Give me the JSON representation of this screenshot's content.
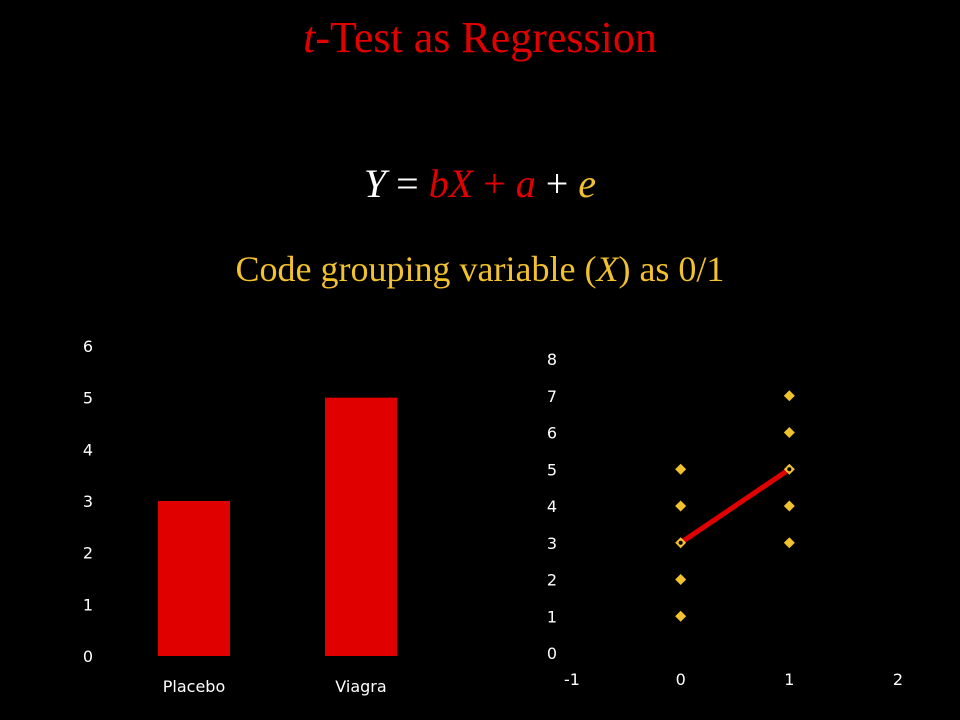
{
  "title": {
    "italic_part": "t",
    "rest": "-Test as Regression"
  },
  "equation": {
    "Y": "Y",
    "eq": " = ",
    "bX": "bX",
    "plus1": " + ",
    "a": "a",
    "plus2": " + ",
    "e": "e",
    "colors": {
      "Y": "#ffffff",
      "eq": "#ffffff",
      "bX": "#e00000",
      "plus1": "#e00000",
      "a": "#e00000",
      "plus2": "#ffffff",
      "e": "#f2c12e"
    }
  },
  "subtitle": {
    "before": "Code grouping variable (",
    "var": "X",
    "after": ") as 0/1",
    "color": "#f2c12e"
  },
  "chart_data": [
    {
      "type": "bar",
      "categories": [
        "Placebo",
        "Viagra"
      ],
      "values": [
        3,
        5
      ],
      "ylim": [
        0,
        6
      ],
      "yticks": [
        "0",
        "1",
        "2",
        "3",
        "4",
        "5",
        "6"
      ],
      "grid": false,
      "color": "#e00000"
    },
    {
      "type": "scatter",
      "xlim": [
        -1,
        2
      ],
      "ylim": [
        0,
        8
      ],
      "xticks": [
        "-1",
        "0",
        "1",
        "2"
      ],
      "yticks": [
        "0",
        "1",
        "2",
        "3",
        "4",
        "5",
        "6",
        "7",
        "8"
      ],
      "grid": false,
      "points": [
        {
          "x": 0,
          "y": 1
        },
        {
          "x": 0,
          "y": 2
        },
        {
          "x": 0,
          "y": 3
        },
        {
          "x": 0,
          "y": 4
        },
        {
          "x": 0,
          "y": 5
        },
        {
          "x": 1,
          "y": 3
        },
        {
          "x": 1,
          "y": 4
        },
        {
          "x": 1,
          "y": 5
        },
        {
          "x": 1,
          "y": 6
        },
        {
          "x": 1,
          "y": 7
        }
      ],
      "line": [
        {
          "x": 0,
          "y": 3
        },
        {
          "x": 1,
          "y": 5
        }
      ],
      "point_color": "#f2c12e",
      "line_color": "#e00000"
    }
  ]
}
